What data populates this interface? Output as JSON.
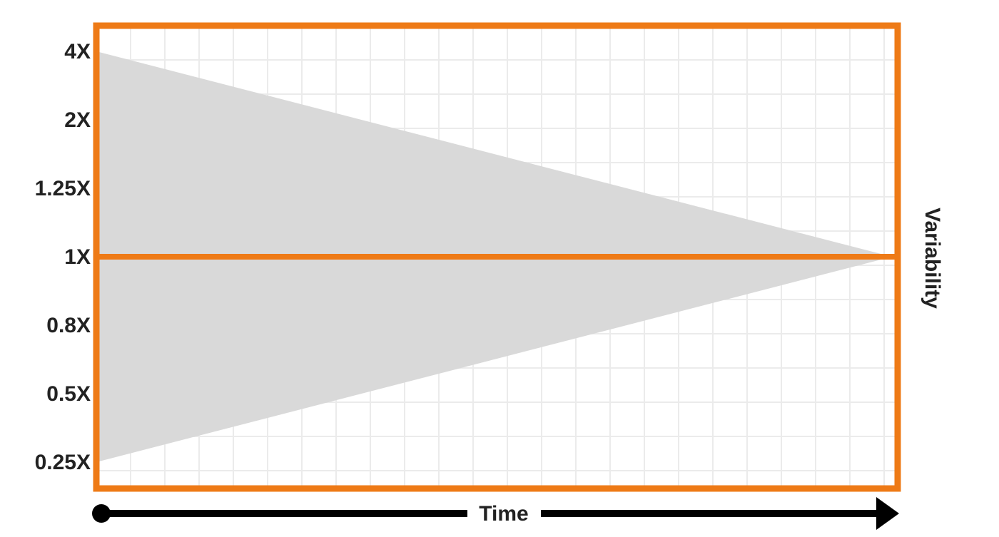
{
  "chart_data": {
    "type": "area",
    "title": "",
    "xlabel": "Time",
    "ylabel": "Variability",
    "y_scale": "log",
    "y_ticks": [
      "4X",
      "2X",
      "1.25X",
      "1X",
      "0.8X",
      "0.5X",
      "0.25X"
    ],
    "grid": true,
    "series": [
      {
        "values_upper": [
          4,
          1
        ],
        "values_lower": [
          0.25,
          1
        ]
      }
    ],
    "reference_line": {
      "value": 1
    }
  },
  "colors": {
    "frame": "#EE7A16",
    "fill": "#D9D9D9",
    "grid": "#EBEBEB",
    "arrow": "#000000",
    "text": "#222222"
  }
}
